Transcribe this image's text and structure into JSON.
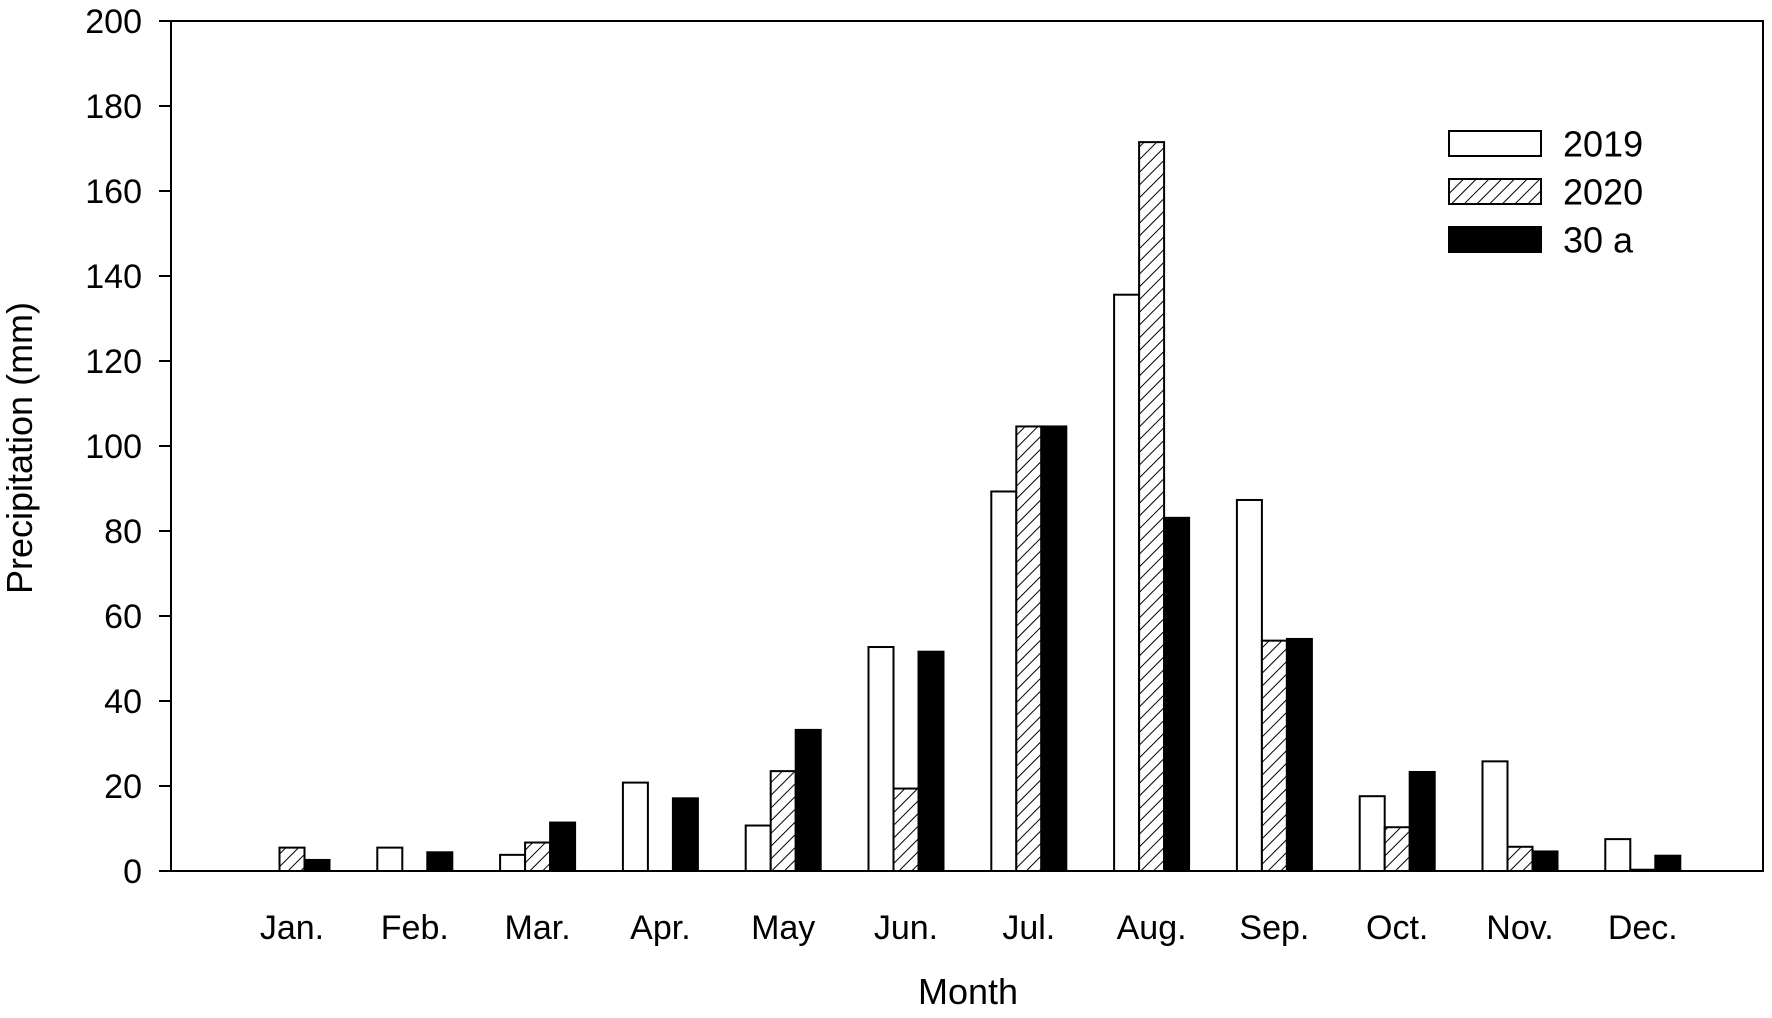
{
  "chart_data": {
    "type": "bar",
    "title": "",
    "xlabel": "Month",
    "ylabel": "Precipitation (mm)",
    "ylim": [
      0,
      200
    ],
    "yticks": [
      "0",
      "20",
      "40",
      "60",
      "80",
      "100",
      "120",
      "140",
      "160",
      "180",
      "200"
    ],
    "grid": false,
    "legend_position": "top-right",
    "categories": [
      "Jan.",
      "Feb.",
      "Mar.",
      "Apr.",
      "May",
      "Jun.",
      "Jul.",
      "Aug.",
      "Sep.",
      "Oct.",
      "Nov.",
      "Dec."
    ],
    "series": [
      {
        "name": "2019",
        "style": "white",
        "values": [
          0,
          5.5,
          3.8,
          20.8,
          10.7,
          52.7,
          89.3,
          135.6,
          87.3,
          17.6,
          25.8,
          7.5
        ]
      },
      {
        "name": "2020",
        "style": "hatched",
        "values": [
          5.5,
          0,
          6.7,
          0,
          23.5,
          19.4,
          104.6,
          171.5,
          54.2,
          10.3,
          5.7,
          0.3
        ]
      },
      {
        "name": "30 a",
        "style": "black",
        "values": [
          2.6,
          4.4,
          11.4,
          17.1,
          33.2,
          51.6,
          104.6,
          83.1,
          54.6,
          23.3,
          4.6,
          3.6
        ]
      }
    ],
    "colors": {
      "bar_outline": "#000000",
      "white_fill": "#ffffff",
      "black_fill": "#000000",
      "axis": "#000000"
    }
  }
}
